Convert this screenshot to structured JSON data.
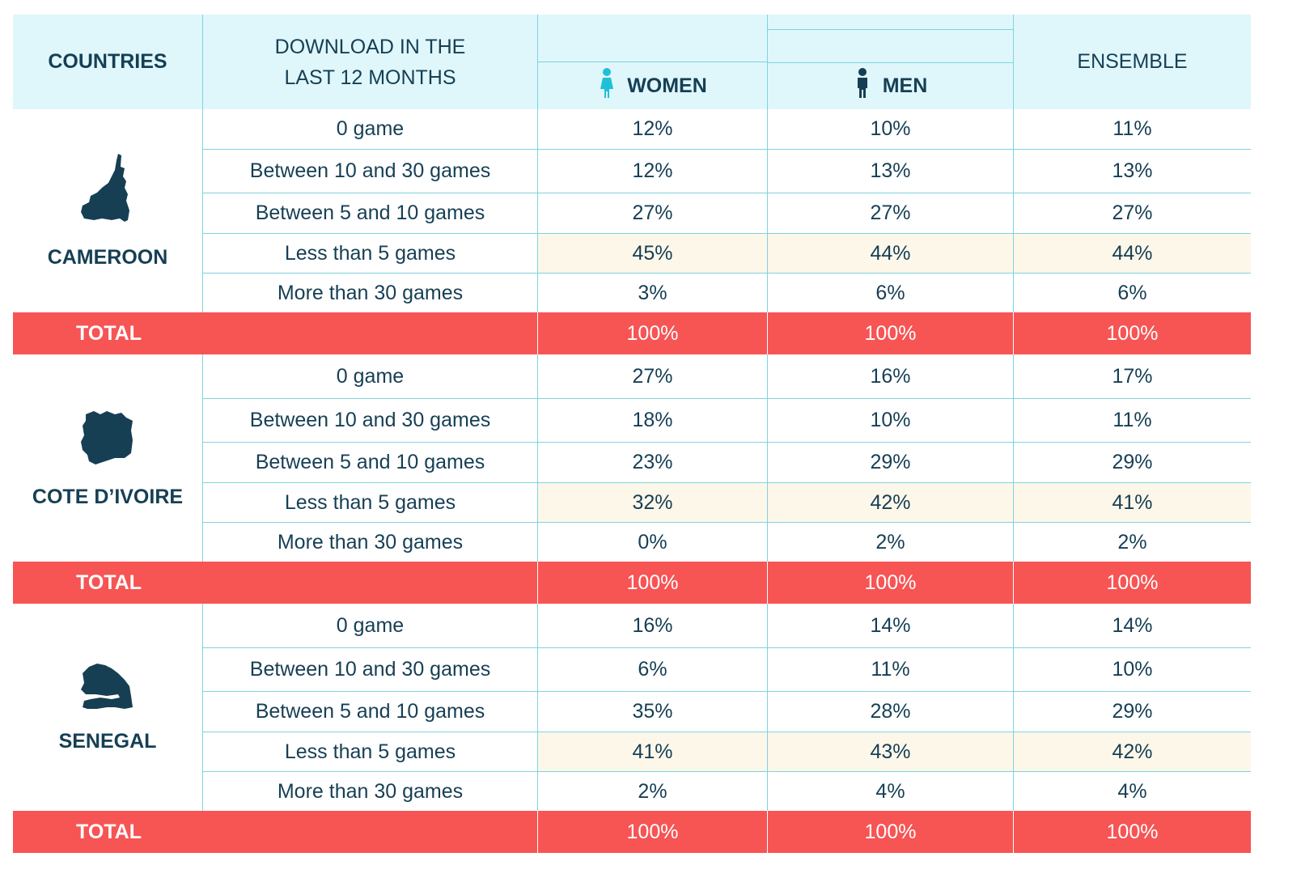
{
  "header": {
    "countries": "COUNTRIES",
    "download_line1": "DOWNLOAD IN THE",
    "download_line2": "LAST 12 MONTHS",
    "women": "WOMEN",
    "men": "MEN",
    "ensemble": "ENSEMBLE"
  },
  "colors": {
    "header_bg": "#dff7fb",
    "border": "#7fd3df",
    "text": "#163f54",
    "highlight_bg": "#fdf7ea",
    "total_bg": "#f75454",
    "icon_color": "#1fc0d6"
  },
  "blocks": [
    {
      "country": "CAMEROON",
      "icon": "cameroon-map-icon",
      "rows": [
        {
          "label": "0 game",
          "women": "12%",
          "men": "10%",
          "ensemble": "11%"
        },
        {
          "label": "Between 10 and 30 games",
          "women": "12%",
          "men": "13%",
          "ensemble": "13%"
        },
        {
          "label": "Between 5 and 10 games",
          "women": "27%",
          "men": "27%",
          "ensemble": "27%"
        },
        {
          "label": "Less than 5 games",
          "women": "45%",
          "men": "44%",
          "ensemble": "44%"
        },
        {
          "label": "More than 30 games",
          "women": "3%",
          "men": "6%",
          "ensemble": "6%"
        }
      ],
      "total": {
        "label": "TOTAL",
        "women": "100%",
        "men": "100%",
        "ensemble": "100%"
      }
    },
    {
      "country": "COTE D’IVOIRE",
      "icon": "cote-divoire-map-icon",
      "rows": [
        {
          "label": "0 game",
          "women": "27%",
          "men": "16%",
          "ensemble": "17%"
        },
        {
          "label": "Between 10 and 30 games",
          "women": "18%",
          "men": "10%",
          "ensemble": "11%"
        },
        {
          "label": "Between 5 and 10 games",
          "women": "23%",
          "men": "29%",
          "ensemble": "29%"
        },
        {
          "label": "Less than 5 games",
          "women": "32%",
          "men": "42%",
          "ensemble": "41%"
        },
        {
          "label": "More than 30 games",
          "women": "0%",
          "men": "2%",
          "ensemble": "2%"
        }
      ],
      "total": {
        "label": "TOTAL",
        "women": "100%",
        "men": "100%",
        "ensemble": "100%"
      }
    },
    {
      "country": "SENEGAL",
      "icon": "senegal-map-icon",
      "rows": [
        {
          "label": "0 game",
          "women": "16%",
          "men": "14%",
          "ensemble": "14%"
        },
        {
          "label": "Between 10 and 30 games",
          "women": "6%",
          "men": "11%",
          "ensemble": "10%"
        },
        {
          "label": "Between 5 and 10 games",
          "women": "35%",
          "men": "28%",
          "ensemble": "29%"
        },
        {
          "label": "Less than 5 games",
          "women": "41%",
          "men": "43%",
          "ensemble": "42%"
        },
        {
          "label": "More than 30 games",
          "women": "2%",
          "men": "4%",
          "ensemble": "4%"
        }
      ],
      "total": {
        "label": "TOTAL",
        "women": "100%",
        "men": "100%",
        "ensemble": "100%"
      }
    }
  ]
}
